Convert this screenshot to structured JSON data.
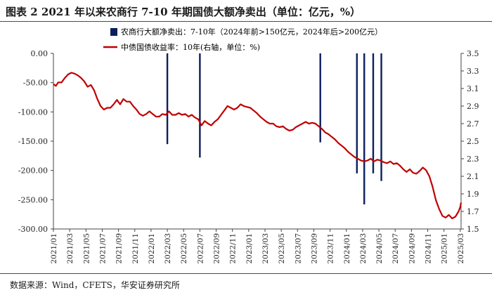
{
  "header": {
    "title": "图表 2   2021 年以来农商行 7-10 年期国债大额净卖出（单位：亿元，%）"
  },
  "footer": {
    "source": "数据来源：Wind，CFETS，华安证券研究所"
  },
  "colors": {
    "bar": "#0b1f5c",
    "line": "#c00000",
    "rule": "#2b4d8c"
  },
  "chart_data": {
    "type": "bar+line",
    "title": "2021 年以来农商行 7-10 年期国债大额净卖出（单位：亿元，%）",
    "x_range": [
      "2021-01",
      "2025-03"
    ],
    "x_ticks": [
      "2021/01",
      "2021/03",
      "2021/05",
      "2021/07",
      "2021/09",
      "2021/11",
      "2022/01",
      "2022/03",
      "2022/05",
      "2022/07",
      "2022/09",
      "2022/11",
      "2023/01",
      "2023/03",
      "2023/05",
      "2023/07",
      "2023/09",
      "2023/11",
      "2024/01",
      "2024/03",
      "2024/05",
      "2024/07",
      "2024/09",
      "2024/11",
      "2025/01",
      "2025/03"
    ],
    "y_left": {
      "ylim": [
        -300,
        0
      ],
      "ticks": [
        0,
        -50,
        -100,
        -150,
        -200,
        -250,
        -300
      ],
      "tick_labels": [
        "0.00",
        "-50.00",
        "-100.00",
        "-150.00",
        "-200.00",
        "-250.00",
        "-300.00"
      ]
    },
    "y_right": {
      "ylim": [
        1.5,
        3.5
      ],
      "ticks": [
        3.5,
        3.3,
        3.1,
        2.9,
        2.7,
        2.5,
        2.3,
        2.1,
        1.9,
        1.7,
        1.5
      ],
      "tick_labels": [
        "3.5",
        "3.3",
        "3.1",
        "2.9",
        "2.7",
        "2.5",
        "2.3",
        "2.1",
        "1.9",
        "1.7",
        "1.5"
      ]
    },
    "series": [
      {
        "name": "农商行大额净卖出：7-10年（2024年前>150亿元，2024年后>200亿元）",
        "type": "bar",
        "axis": "left",
        "points": [
          {
            "x": 14.0,
            "y": -155
          },
          {
            "x": 18.0,
            "y": -178
          },
          {
            "x": 32.8,
            "y": -152
          },
          {
            "x": 37.3,
            "y": -205
          },
          {
            "x": 38.2,
            "y": -258
          },
          {
            "x": 39.3,
            "y": -205
          },
          {
            "x": 40.3,
            "y": -218
          }
        ]
      },
      {
        "name": "中债国债收益率：10年(右轴，单位：%)",
        "type": "line",
        "axis": "right",
        "points": [
          [
            0.0,
            3.15
          ],
          [
            0.3,
            3.13
          ],
          [
            0.6,
            3.17
          ],
          [
            1.0,
            3.17
          ],
          [
            1.4,
            3.22
          ],
          [
            1.8,
            3.26
          ],
          [
            2.2,
            3.28
          ],
          [
            2.6,
            3.27
          ],
          [
            3.0,
            3.25
          ],
          [
            3.4,
            3.22
          ],
          [
            3.8,
            3.18
          ],
          [
            4.2,
            3.12
          ],
          [
            4.6,
            3.14
          ],
          [
            5.0,
            3.08
          ],
          [
            5.4,
            2.98
          ],
          [
            5.8,
            2.9
          ],
          [
            6.2,
            2.86
          ],
          [
            6.6,
            2.88
          ],
          [
            7.0,
            2.88
          ],
          [
            7.4,
            2.92
          ],
          [
            7.8,
            2.97
          ],
          [
            8.2,
            2.92
          ],
          [
            8.6,
            2.98
          ],
          [
            9.0,
            2.95
          ],
          [
            9.4,
            2.95
          ],
          [
            9.8,
            2.9
          ],
          [
            10.2,
            2.86
          ],
          [
            10.6,
            2.81
          ],
          [
            11.0,
            2.79
          ],
          [
            11.4,
            2.81
          ],
          [
            11.8,
            2.84
          ],
          [
            12.2,
            2.81
          ],
          [
            12.6,
            2.78
          ],
          [
            13.0,
            2.78
          ],
          [
            13.4,
            2.81
          ],
          [
            13.8,
            2.8
          ],
          [
            14.2,
            2.84
          ],
          [
            14.6,
            2.8
          ],
          [
            15.0,
            2.8
          ],
          [
            15.4,
            2.82
          ],
          [
            15.8,
            2.8
          ],
          [
            16.2,
            2.81
          ],
          [
            16.6,
            2.78
          ],
          [
            17.0,
            2.8
          ],
          [
            17.4,
            2.77
          ],
          [
            17.8,
            2.75
          ],
          [
            18.2,
            2.68
          ],
          [
            18.6,
            2.73
          ],
          [
            19.0,
            2.7
          ],
          [
            19.4,
            2.68
          ],
          [
            19.8,
            2.72
          ],
          [
            20.2,
            2.75
          ],
          [
            20.6,
            2.8
          ],
          [
            21.0,
            2.85
          ],
          [
            21.4,
            2.9
          ],
          [
            21.8,
            2.88
          ],
          [
            22.2,
            2.86
          ],
          [
            22.6,
            2.88
          ],
          [
            23.0,
            2.92
          ],
          [
            23.4,
            2.9
          ],
          [
            23.8,
            2.89
          ],
          [
            24.2,
            2.88
          ],
          [
            24.6,
            2.85
          ],
          [
            25.0,
            2.82
          ],
          [
            25.4,
            2.78
          ],
          [
            25.8,
            2.75
          ],
          [
            26.2,
            2.72
          ],
          [
            26.6,
            2.7
          ],
          [
            27.0,
            2.7
          ],
          [
            27.4,
            2.67
          ],
          [
            27.8,
            2.66
          ],
          [
            28.2,
            2.67
          ],
          [
            28.6,
            2.64
          ],
          [
            29.0,
            2.62
          ],
          [
            29.4,
            2.63
          ],
          [
            29.8,
            2.66
          ],
          [
            30.2,
            2.68
          ],
          [
            30.6,
            2.7
          ],
          [
            31.0,
            2.72
          ],
          [
            31.4,
            2.7
          ],
          [
            31.8,
            2.71
          ],
          [
            32.2,
            2.7
          ],
          [
            32.6,
            2.67
          ],
          [
            33.0,
            2.64
          ],
          [
            33.4,
            2.6
          ],
          [
            33.8,
            2.58
          ],
          [
            34.2,
            2.55
          ],
          [
            34.6,
            2.52
          ],
          [
            35.0,
            2.48
          ],
          [
            35.4,
            2.45
          ],
          [
            35.8,
            2.42
          ],
          [
            36.2,
            2.38
          ],
          [
            36.6,
            2.35
          ],
          [
            37.0,
            2.32
          ],
          [
            37.4,
            2.3
          ],
          [
            37.8,
            2.28
          ],
          [
            38.2,
            2.27
          ],
          [
            38.6,
            2.28
          ],
          [
            39.0,
            2.3
          ],
          [
            39.4,
            2.27
          ],
          [
            39.8,
            2.29
          ],
          [
            40.2,
            2.28
          ],
          [
            40.6,
            2.26
          ],
          [
            41.0,
            2.25
          ],
          [
            41.4,
            2.27
          ],
          [
            41.8,
            2.24
          ],
          [
            42.2,
            2.25
          ],
          [
            42.6,
            2.22
          ],
          [
            43.0,
            2.18
          ],
          [
            43.4,
            2.15
          ],
          [
            43.8,
            2.18
          ],
          [
            44.2,
            2.14
          ],
          [
            44.6,
            2.13
          ],
          [
            45.0,
            2.16
          ],
          [
            45.4,
            2.2
          ],
          [
            45.8,
            2.17
          ],
          [
            46.2,
            2.1
          ],
          [
            46.6,
            1.98
          ],
          [
            47.0,
            1.83
          ],
          [
            47.4,
            1.73
          ],
          [
            47.8,
            1.65
          ],
          [
            48.2,
            1.63
          ],
          [
            48.6,
            1.66
          ],
          [
            49.0,
            1.62
          ],
          [
            49.4,
            1.64
          ],
          [
            49.8,
            1.7
          ],
          [
            50.0,
            1.75
          ],
          [
            50.1,
            1.8
          ]
        ]
      }
    ],
    "legend": "top-center"
  }
}
